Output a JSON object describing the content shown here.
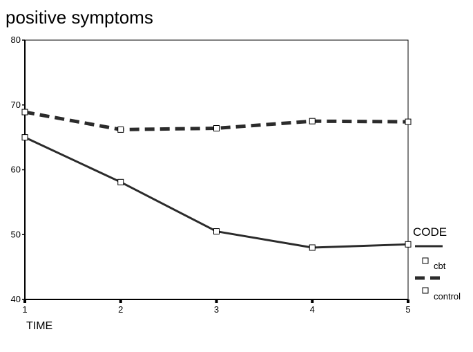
{
  "chart_data": {
    "type": "line",
    "title": "positive symptoms",
    "xlabel": "TIME",
    "ylabel": "",
    "x": [
      1,
      2,
      3,
      4,
      5
    ],
    "xlim": [
      1,
      5
    ],
    "ylim": [
      40,
      80
    ],
    "y_ticks": [
      40,
      50,
      60,
      70,
      80
    ],
    "x_ticks": [
      1,
      2,
      3,
      4,
      5
    ],
    "grid": false,
    "legend": {
      "title": "CODE",
      "placement": "right",
      "entries": [
        "cbt",
        "control"
      ]
    },
    "series": [
      {
        "name": "cbt",
        "values": [
          65.0,
          58.1,
          50.5,
          48.0,
          48.5
        ],
        "line_style": "solid",
        "color": "#2b2b2b"
      },
      {
        "name": "control",
        "values": [
          68.9,
          66.2,
          66.4,
          67.5,
          67.4
        ],
        "line_style": "dashed",
        "color": "#2b2b2b"
      }
    ]
  }
}
